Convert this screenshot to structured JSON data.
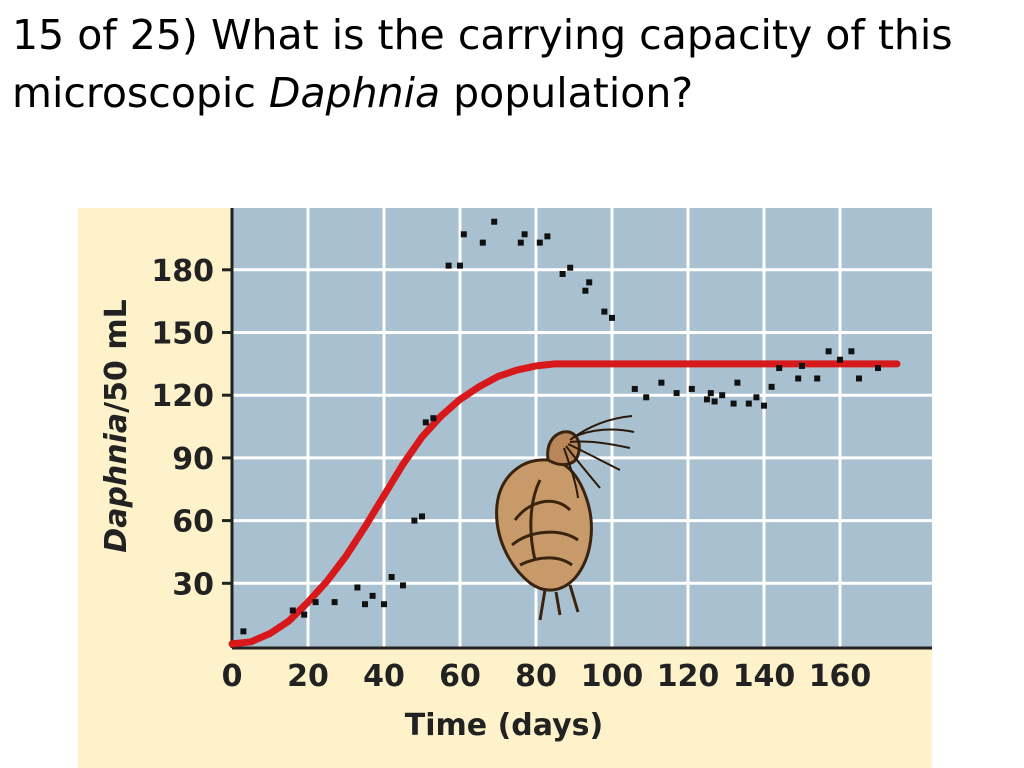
{
  "question": {
    "prefix": "15 of 25) What is the carrying capacity of this microscopic ",
    "italic_word": "Daphnia",
    "suffix": " population?"
  },
  "chart_data": {
    "type": "scatter",
    "xlabel": "Time (days)",
    "ylabel_italic": "Daphnia",
    "ylabel_rest": "/50 mL",
    "xlim": [
      0,
      175
    ],
    "ylim": [
      0,
      210
    ],
    "x_ticks": [
      0,
      20,
      40,
      60,
      80,
      100,
      120,
      140,
      160
    ],
    "y_ticks": [
      30,
      60,
      90,
      120,
      150,
      180
    ],
    "grid": true,
    "colors": {
      "plot_background": "#a9c0d1",
      "panel_background": "#fdf2c9",
      "grid": "#ffffff",
      "curve": "#d7191c",
      "points": "#111111"
    },
    "illustration": "daphnia-drawing",
    "series": [
      {
        "type": "scatter",
        "points": [
          [
            3,
            7
          ],
          [
            16,
            17
          ],
          [
            19,
            15
          ],
          [
            22,
            21
          ],
          [
            27,
            21
          ],
          [
            33,
            28
          ],
          [
            35,
            20
          ],
          [
            37,
            24
          ],
          [
            40,
            20
          ],
          [
            42,
            33
          ],
          [
            45,
            29
          ],
          [
            48,
            60
          ],
          [
            50,
            62
          ],
          [
            51,
            107
          ],
          [
            53,
            109
          ],
          [
            57,
            182
          ],
          [
            60,
            182
          ],
          [
            61,
            197
          ],
          [
            66,
            193
          ],
          [
            69,
            203
          ],
          [
            76,
            193
          ],
          [
            77,
            197
          ],
          [
            81,
            193
          ],
          [
            83,
            196
          ],
          [
            87,
            178
          ],
          [
            89,
            181
          ],
          [
            93,
            170
          ],
          [
            94,
            174
          ],
          [
            98,
            160
          ],
          [
            100,
            157
          ],
          [
            106,
            123
          ],
          [
            109,
            119
          ],
          [
            113,
            126
          ],
          [
            117,
            121
          ],
          [
            121,
            123
          ],
          [
            125,
            118
          ],
          [
            126,
            121
          ],
          [
            127,
            117
          ],
          [
            129,
            120
          ],
          [
            132,
            116
          ],
          [
            133,
            126
          ],
          [
            136,
            116
          ],
          [
            138,
            119
          ],
          [
            140,
            115
          ],
          [
            142,
            124
          ],
          [
            144,
            133
          ],
          [
            149,
            128
          ],
          [
            150,
            134
          ],
          [
            154,
            128
          ],
          [
            157,
            141
          ],
          [
            160,
            137
          ],
          [
            163,
            141
          ],
          [
            165,
            128
          ],
          [
            170,
            133
          ]
        ]
      },
      {
        "type": "line",
        "points": [
          [
            0,
            1
          ],
          [
            5,
            2
          ],
          [
            10,
            6
          ],
          [
            15,
            12
          ],
          [
            20,
            21
          ],
          [
            25,
            31
          ],
          [
            30,
            43
          ],
          [
            35,
            57
          ],
          [
            40,
            72
          ],
          [
            45,
            87
          ],
          [
            50,
            100
          ],
          [
            55,
            110
          ],
          [
            60,
            118
          ],
          [
            65,
            124
          ],
          [
            70,
            129
          ],
          [
            75,
            132
          ],
          [
            80,
            134
          ],
          [
            85,
            135
          ],
          [
            90,
            135
          ],
          [
            100,
            135
          ],
          [
            120,
            135
          ],
          [
            140,
            135
          ],
          [
            160,
            135
          ],
          [
            175,
            135
          ]
        ]
      }
    ]
  }
}
